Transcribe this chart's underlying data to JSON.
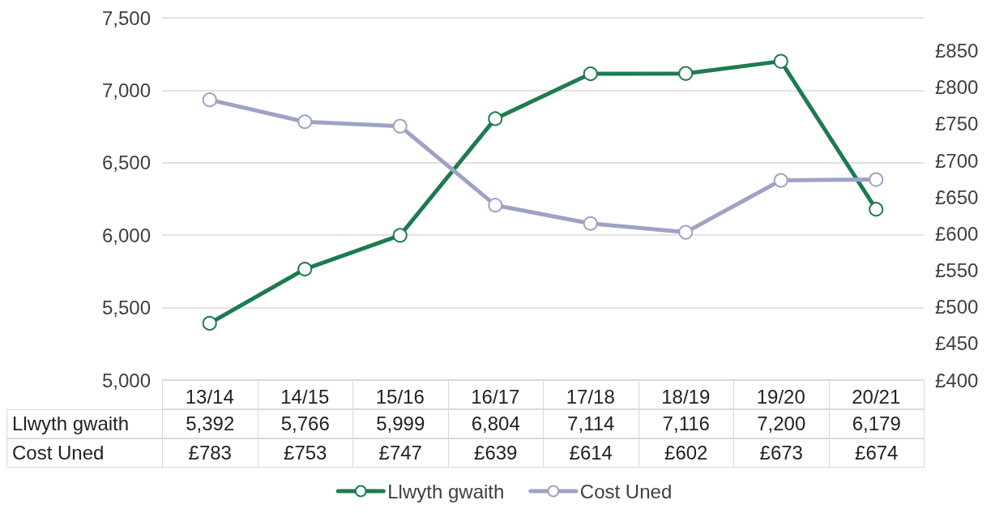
{
  "chart_data": {
    "type": "line",
    "categories": [
      "13/14",
      "14/15",
      "15/16",
      "16/17",
      "17/18",
      "18/19",
      "19/20",
      "20/21"
    ],
    "series": [
      {
        "name": "Llwyth gwaith",
        "color": "#1e7b4f",
        "values": [
          5392,
          5766,
          5999,
          6804,
          7114,
          7116,
          7200,
          6179
        ],
        "value_labels": [
          "5,392",
          "5,766",
          "5,999",
          "6,804",
          "7,114",
          "7,116",
          "7,200",
          "6,179"
        ]
      },
      {
        "name": "Cost Uned",
        "color": "#9ea3c4",
        "axis": "y2",
        "values": [
          783,
          753,
          747,
          639,
          614,
          602,
          673,
          674
        ],
        "value_labels": [
          "£783",
          "£753",
          "£747",
          "£639",
          "£614",
          "£602",
          "£673",
          "£674"
        ]
      }
    ],
    "ylim": [
      5000,
      7500
    ],
    "yticks": [
      {
        "value": 5000,
        "label": "5,000"
      },
      {
        "value": 5500,
        "label": "5,500"
      },
      {
        "value": 6000,
        "label": "6,000"
      },
      {
        "value": 6500,
        "label": "6,500"
      },
      {
        "value": 7000,
        "label": "7,000"
      },
      {
        "value": 7500,
        "label": "7,500"
      }
    ],
    "y2lim": [
      400,
      895
    ],
    "y2ticks": [
      {
        "value": 400,
        "label": "£400"
      },
      {
        "value": 450,
        "label": "£450"
      },
      {
        "value": 500,
        "label": "£500"
      },
      {
        "value": 550,
        "label": "£550"
      },
      {
        "value": 600,
        "label": "£600"
      },
      {
        "value": 650,
        "label": "£650"
      },
      {
        "value": 700,
        "label": "£700"
      },
      {
        "value": 750,
        "label": "£750"
      },
      {
        "value": 800,
        "label": "£800"
      },
      {
        "value": 850,
        "label": "£850"
      }
    ],
    "grid": "y",
    "legend": "bottom",
    "marker": "circle",
    "line_style": "solid"
  }
}
